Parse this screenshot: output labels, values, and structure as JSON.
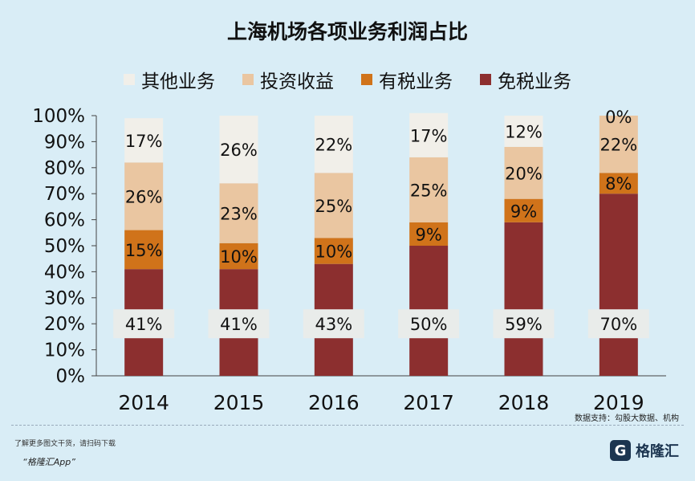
{
  "title": "上海机场各项业务利润占比",
  "legend": [
    {
      "name": "其他业务",
      "color": "#f1efe9"
    },
    {
      "name": "投资收益",
      "color": "#eac6a1"
    },
    {
      "name": "有税业务",
      "color": "#d0731a"
    },
    {
      "name": "免税业务",
      "color": "#8c2f2f"
    }
  ],
  "source_note": "数据支持：勾股大数据、机构",
  "footer_note": "了解更多图文干货，请扫码下载",
  "footer_app": "“格隆汇App”",
  "brand": {
    "icon": "G",
    "name": "格隆汇"
  },
  "chart_data": {
    "type": "bar",
    "stacked": true,
    "categories": [
      "2014",
      "2015",
      "2016",
      "2017",
      "2018",
      "2019"
    ],
    "series": [
      {
        "name": "免税业务",
        "values": [
          41,
          41,
          43,
          50,
          59,
          70
        ],
        "labels": [
          "41%",
          "41%",
          "43%",
          "50%",
          "59%",
          "70%"
        ]
      },
      {
        "name": "有税业务",
        "values": [
          15,
          10,
          10,
          9,
          9,
          8
        ],
        "labels": [
          "15%",
          "10%",
          "10%",
          "9%",
          "9%",
          "8%"
        ]
      },
      {
        "name": "投资收益",
        "values": [
          26,
          23,
          25,
          25,
          20,
          22
        ],
        "labels": [
          "26%",
          "23%",
          "25%",
          "25%",
          "20%",
          "22%"
        ]
      },
      {
        "name": "其他业务",
        "values": [
          17,
          26,
          22,
          17,
          12,
          0
        ],
        "labels": [
          "17%",
          "26%",
          "22%",
          "17%",
          "12%",
          "0%"
        ]
      }
    ],
    "yticks": [
      "0%",
      "10%",
      "20%",
      "30%",
      "40%",
      "50%",
      "60%",
      "70%",
      "80%",
      "90%",
      "100%"
    ],
    "ylim": [
      0,
      100
    ],
    "legend_position": "top",
    "grid": false
  }
}
